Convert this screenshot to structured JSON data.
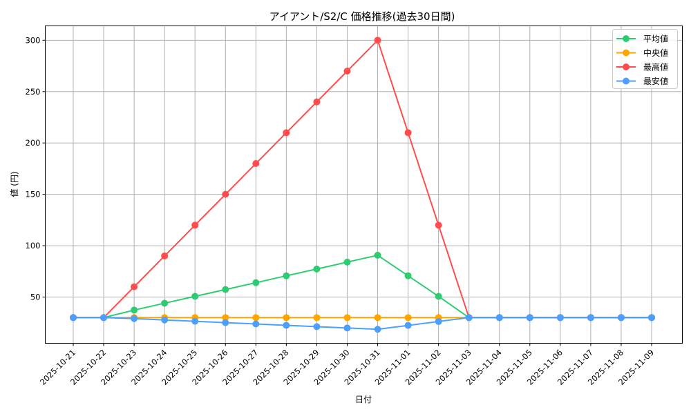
{
  "chart_data": {
    "type": "line",
    "title": "アイアント/S2/C 価格推移(過去30日間)",
    "xlabel": "日付",
    "ylabel": "値 (円)",
    "ylim": [
      5,
      314
    ],
    "yticks": [
      50,
      100,
      150,
      200,
      250,
      300
    ],
    "grid": true,
    "legend_position": "upper right",
    "categories": [
      "2025-10-21",
      "2025-10-22",
      "2025-10-23",
      "2025-10-24",
      "2025-10-25",
      "2025-10-26",
      "2025-10-27",
      "2025-10-28",
      "2025-10-29",
      "2025-10-30",
      "2025-10-31",
      "2025-11-01",
      "2025-11-02",
      "2025-11-03",
      "2025-11-04",
      "2025-11-05",
      "2025-11-06",
      "2025-11-07",
      "2025-11-08",
      "2025-11-09"
    ],
    "series": [
      {
        "name": "平均値",
        "color": "#2ecc71",
        "values": [
          30,
          30,
          37.3,
          44,
          50.7,
          57.3,
          64,
          70.7,
          77.3,
          84,
          90.7,
          70.7,
          50.7,
          30,
          30,
          30,
          30,
          30,
          30,
          30
        ]
      },
      {
        "name": "中央値",
        "color": "#ffa500",
        "values": [
          30,
          30,
          30,
          30,
          30,
          30,
          30,
          30,
          30,
          30,
          30,
          30,
          30,
          30,
          30,
          30,
          30,
          30,
          30,
          30
        ]
      },
      {
        "name": "最高値",
        "color": "#ff4d4d",
        "values": [
          30,
          30,
          60,
          90,
          120,
          150,
          180,
          210,
          240,
          270,
          300,
          210,
          120,
          30,
          30,
          30,
          30,
          30,
          30,
          30
        ]
      },
      {
        "name": "最安値",
        "color": "#4d9fff",
        "values": [
          30,
          30,
          29,
          27.7,
          26.4,
          25.1,
          23.8,
          22.5,
          21.2,
          19.9,
          18.6,
          22.4,
          26.2,
          30,
          30,
          30,
          30,
          30,
          30,
          30
        ]
      }
    ]
  }
}
